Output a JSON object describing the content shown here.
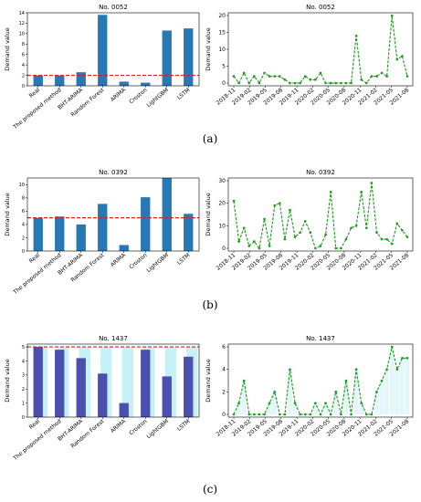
{
  "ylabel": "Demand value",
  "bar_categories": [
    "Real",
    "The proposed method",
    "BHT-ARIMA",
    "Random Forest",
    "ARIMA",
    "Croston",
    "LightGBM",
    "LSTM"
  ],
  "time_ticks": [
    "2018-11",
    "2019-02",
    "2019-05",
    "2019-08",
    "2019-11",
    "2020-02",
    "2020-05",
    "2020-08",
    "2020-11",
    "2021-02",
    "2021-05",
    "2021-08"
  ],
  "colors": {
    "bar": "#2878b5",
    "bar_purple": "#4b4fb0",
    "bar_shadow": "#c6f1f6",
    "red_line": "#e31a1c",
    "line": "#1a9a1a"
  },
  "panels": [
    {
      "caption": "(a)",
      "chart_data": [
        {
          "type": "bar",
          "title": "No. 0052",
          "ylabel": "Demand value",
          "categories": [
            "Real",
            "The proposed method",
            "BHT-ARIMA",
            "Random Forest",
            "ARIMA",
            "Croston",
            "LightGBM",
            "LSTM"
          ],
          "values": [
            2.0,
            2.0,
            2.6,
            13.6,
            0.8,
            0.6,
            10.6,
            11.0
          ],
          "ylim": [
            0,
            14
          ],
          "yticks": [
            0,
            2,
            4,
            6,
            8,
            10,
            12,
            14
          ],
          "reference_line": 2.0,
          "grid": false
        },
        {
          "type": "line",
          "title": "No. 0052",
          "ylabel": "Demand value",
          "ylim": [
            0,
            20
          ],
          "yticks": [
            0,
            5,
            10,
            15,
            20
          ],
          "x_ticks": [
            "2018-11",
            "2019-02",
            "2019-05",
            "2019-08",
            "2019-11",
            "2020-02",
            "2020-05",
            "2020-08",
            "2020-11",
            "2021-02",
            "2021-05",
            "2021-08"
          ],
          "values": [
            2,
            0,
            3,
            0,
            2,
            0,
            3,
            2,
            2,
            2,
            1,
            0,
            0,
            0,
            2,
            1,
            1,
            3,
            0,
            0,
            0,
            0,
            0,
            0,
            14,
            1,
            0,
            2,
            2,
            3,
            2,
            20,
            7,
            8,
            2
          ],
          "grid": false
        }
      ]
    },
    {
      "caption": "(b)",
      "chart_data": [
        {
          "type": "bar",
          "title": "No. 0392",
          "ylabel": "Demand value",
          "categories": [
            "Real",
            "The proposed method",
            "BHT-ARIMA",
            "Random Forest",
            "ARIMA",
            "Croston",
            "LightGBM",
            "LSTM"
          ],
          "values": [
            5.0,
            5.2,
            4.0,
            7.1,
            0.9,
            8.1,
            11.0,
            5.6
          ],
          "ylim": [
            0,
            11
          ],
          "yticks": [
            0,
            2,
            4,
            6,
            8,
            10
          ],
          "reference_line": 5.0,
          "grid": false
        },
        {
          "type": "line",
          "title": "No. 0392",
          "ylabel": "Demand value",
          "ylim": [
            0,
            30
          ],
          "yticks": [
            0,
            10,
            20,
            30
          ],
          "x_ticks": [
            "2018-11",
            "2019-02",
            "2019-05",
            "2019-08",
            "2019-11",
            "2020-02",
            "2020-05",
            "2020-08",
            "2020-11",
            "2021-02",
            "2021-05",
            "2021-08"
          ],
          "values": [
            21,
            3,
            9,
            1,
            3,
            0,
            13,
            1,
            19,
            20,
            4,
            17,
            5,
            7,
            12,
            7,
            0,
            1,
            6,
            25,
            0,
            0,
            4,
            9,
            10,
            25,
            9,
            29,
            7,
            4,
            4,
            2,
            11,
            8,
            5
          ],
          "grid": false
        }
      ]
    },
    {
      "caption": "(c)",
      "chart_data": [
        {
          "type": "bar",
          "title": "No. 1437",
          "ylabel": "Demand value",
          "categories": [
            "Real",
            "The proposed method",
            "BHT-ARIMA",
            "Random Forest",
            "ARIMA",
            "Croston",
            "LightGBM",
            "LSTM"
          ],
          "values": [
            5.0,
            4.8,
            4.2,
            3.1,
            1.0,
            4.8,
            2.9,
            4.3
          ],
          "ylim": [
            0,
            5.2
          ],
          "yticks": [
            0,
            1,
            2,
            3,
            4,
            5
          ],
          "reference_line": 5.0,
          "grid": false
        },
        {
          "type": "line",
          "title": "No. 1437",
          "ylabel": "Demand value",
          "ylim": [
            0,
            6
          ],
          "yticks": [
            0,
            2,
            4,
            6
          ],
          "x_ticks": [
            "2018-11",
            "2019-02",
            "2019-05",
            "2019-08",
            "2019-11",
            "2020-02",
            "2020-05",
            "2020-08",
            "2020-11",
            "2021-02",
            "2021-05",
            "2021-08"
          ],
          "values": [
            0,
            1,
            3,
            0,
            0,
            0,
            0,
            1,
            2,
            0,
            0,
            4,
            1,
            0,
            0,
            0,
            1,
            0,
            1,
            0,
            2,
            0,
            3,
            0,
            4,
            1,
            0,
            0,
            2,
            3,
            4,
            6,
            4,
            5,
            5
          ],
          "grid": false
        }
      ]
    }
  ]
}
